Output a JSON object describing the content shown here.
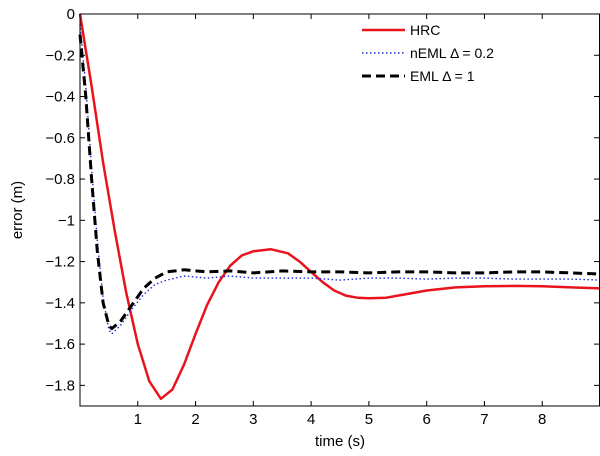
{
  "chart_data": {
    "type": "line",
    "xlabel": "time (s)",
    "ylabel": "error (m)",
    "xlim": [
      0,
      9
    ],
    "ylim": [
      -1.9,
      0
    ],
    "x_ticks": [
      1,
      2,
      3,
      4,
      5,
      6,
      7,
      8
    ],
    "x_tick_labels": [
      "1",
      "2",
      "3",
      "4",
      "5",
      "6",
      "7",
      "8"
    ],
    "y_ticks": [
      0,
      -0.2,
      -0.4,
      -0.6,
      -0.8,
      -1,
      -1.2,
      -1.4,
      -1.6,
      -1.8
    ],
    "y_tick_labels": [
      "0",
      "−0.2",
      "−0.4",
      "−0.6",
      "−0.8",
      "−1",
      "−1.2",
      "−1.4",
      "−1.6",
      "−1.8"
    ],
    "grid": false,
    "legend_position": "top-right",
    "series": [
      {
        "name": "HRC",
        "color": "#e8141c",
        "style": "solid",
        "points": [
          [
            0,
            0
          ],
          [
            0.2,
            -0.35
          ],
          [
            0.4,
            -0.72
          ],
          [
            0.6,
            -1.05
          ],
          [
            0.8,
            -1.35
          ],
          [
            1.0,
            -1.6
          ],
          [
            1.2,
            -1.78
          ],
          [
            1.4,
            -1.865
          ],
          [
            1.6,
            -1.82
          ],
          [
            1.8,
            -1.7
          ],
          [
            2.0,
            -1.55
          ],
          [
            2.2,
            -1.41
          ],
          [
            2.4,
            -1.3
          ],
          [
            2.6,
            -1.22
          ],
          [
            2.8,
            -1.17
          ],
          [
            3.0,
            -1.15
          ],
          [
            3.3,
            -1.14
          ],
          [
            3.6,
            -1.16
          ],
          [
            3.8,
            -1.2
          ],
          [
            4.0,
            -1.25
          ],
          [
            4.2,
            -1.3
          ],
          [
            4.4,
            -1.34
          ],
          [
            4.6,
            -1.365
          ],
          [
            4.8,
            -1.375
          ],
          [
            5.0,
            -1.378
          ],
          [
            5.3,
            -1.375
          ],
          [
            5.6,
            -1.36
          ],
          [
            6.0,
            -1.34
          ],
          [
            6.5,
            -1.325
          ],
          [
            7.0,
            -1.32
          ],
          [
            7.5,
            -1.318
          ],
          [
            8.0,
            -1.32
          ],
          [
            8.5,
            -1.325
          ],
          [
            9.0,
            -1.33
          ]
        ]
      },
      {
        "name": "nEML Δ = 0.2",
        "color": "#1c2bd6",
        "style": "dotted",
        "points": [
          [
            0,
            -0.05
          ],
          [
            0.1,
            -0.35
          ],
          [
            0.2,
            -0.75
          ],
          [
            0.3,
            -1.1
          ],
          [
            0.4,
            -1.38
          ],
          [
            0.5,
            -1.53
          ],
          [
            0.55,
            -1.55
          ],
          [
            0.7,
            -1.51
          ],
          [
            0.9,
            -1.43
          ],
          [
            1.1,
            -1.36
          ],
          [
            1.3,
            -1.31
          ],
          [
            1.5,
            -1.29
          ],
          [
            1.8,
            -1.27
          ],
          [
            2.2,
            -1.28
          ],
          [
            2.6,
            -1.27
          ],
          [
            3.0,
            -1.28
          ],
          [
            3.5,
            -1.28
          ],
          [
            4.0,
            -1.28
          ],
          [
            4.5,
            -1.29
          ],
          [
            5.0,
            -1.28
          ],
          [
            5.5,
            -1.28
          ],
          [
            6.0,
            -1.285
          ],
          [
            6.5,
            -1.28
          ],
          [
            7.0,
            -1.28
          ],
          [
            7.5,
            -1.285
          ],
          [
            8.0,
            -1.285
          ],
          [
            8.5,
            -1.285
          ],
          [
            9.0,
            -1.29
          ]
        ]
      },
      {
        "name": "EML Δ = 1",
        "color": "#000000",
        "style": "dashed",
        "points": [
          [
            0,
            -0.1
          ],
          [
            0.1,
            -0.4
          ],
          [
            0.2,
            -0.8
          ],
          [
            0.3,
            -1.15
          ],
          [
            0.4,
            -1.4
          ],
          [
            0.5,
            -1.51
          ],
          [
            0.55,
            -1.525
          ],
          [
            0.7,
            -1.49
          ],
          [
            0.9,
            -1.41
          ],
          [
            1.1,
            -1.33
          ],
          [
            1.3,
            -1.28
          ],
          [
            1.5,
            -1.25
          ],
          [
            1.8,
            -1.24
          ],
          [
            2.2,
            -1.25
          ],
          [
            2.6,
            -1.245
          ],
          [
            3.0,
            -1.255
          ],
          [
            3.5,
            -1.245
          ],
          [
            4.0,
            -1.25
          ],
          [
            4.5,
            -1.25
          ],
          [
            5.0,
            -1.255
          ],
          [
            5.5,
            -1.25
          ],
          [
            6.0,
            -1.25
          ],
          [
            6.5,
            -1.255
          ],
          [
            7.0,
            -1.255
          ],
          [
            7.5,
            -1.25
          ],
          [
            8.0,
            -1.25
          ],
          [
            8.5,
            -1.255
          ],
          [
            9.0,
            -1.26
          ]
        ]
      }
    ]
  }
}
